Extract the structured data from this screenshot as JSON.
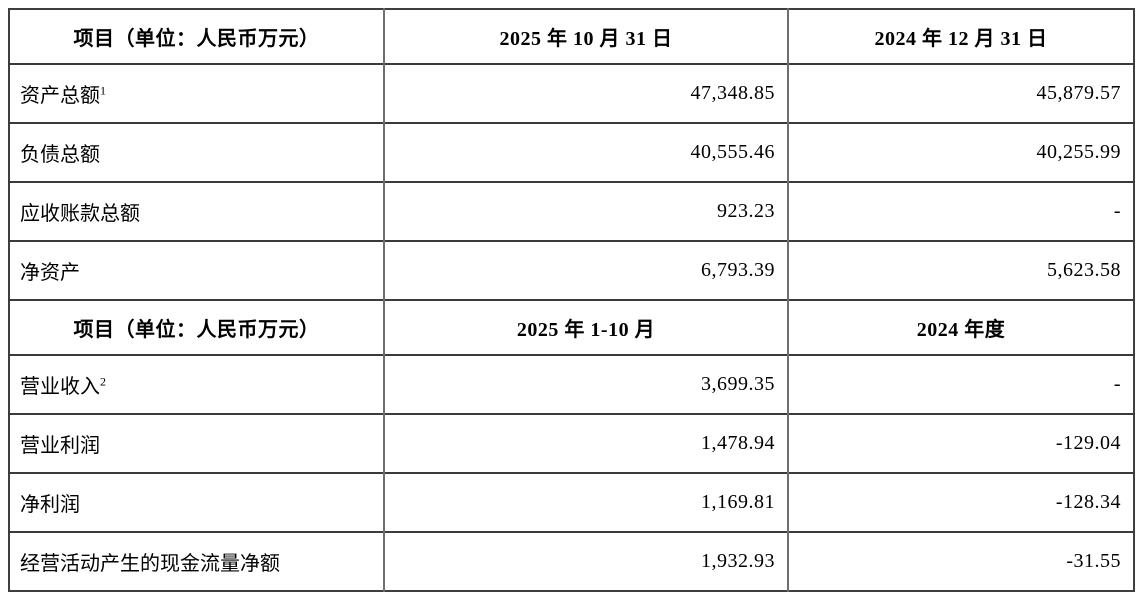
{
  "document": {
    "type": "financial-summary-table",
    "currency_unit_note": "人民币万元",
    "colors": {
      "border_outer": "#3f3f3f",
      "border_horizontal": "#3a3a3a",
      "border_vertical": "#6e6e6e",
      "text": "#000000",
      "background": "#ffffff"
    }
  },
  "table": {
    "sections": [
      {
        "header": {
          "col1": "项目（单位：人民币万元）",
          "col2": "2025 年 10 月 31 日",
          "col3": "2024 年 12 月 31 日"
        },
        "rows": [
          {
            "label": "资产总额",
            "sup": "1",
            "v1": "47,348.85",
            "v2": "45,879.57"
          },
          {
            "label": "负债总额",
            "v1": "40,555.46",
            "v2": "40,255.99"
          },
          {
            "label": "应收账款总额",
            "v1": "923.23",
            "v2": "-"
          },
          {
            "label": "净资产",
            "v1": "6,793.39",
            "v2": "5,623.58"
          }
        ]
      },
      {
        "header": {
          "col1": "项目（单位：人民币万元）",
          "col2": "2025 年 1-10 月",
          "col3": "2024 年度"
        },
        "rows": [
          {
            "label": "营业收入",
            "sup": "2",
            "v1": "3,699.35",
            "v2": "-"
          },
          {
            "label": "营业利润",
            "v1": "1,478.94",
            "v2": "-129.04"
          },
          {
            "label": "净利润",
            "v1": "1,169.81",
            "v2": "-128.34"
          },
          {
            "label": "经营活动产生的现金流量净额",
            "v1": "1,932.93",
            "v2": "-31.55"
          }
        ]
      }
    ]
  }
}
